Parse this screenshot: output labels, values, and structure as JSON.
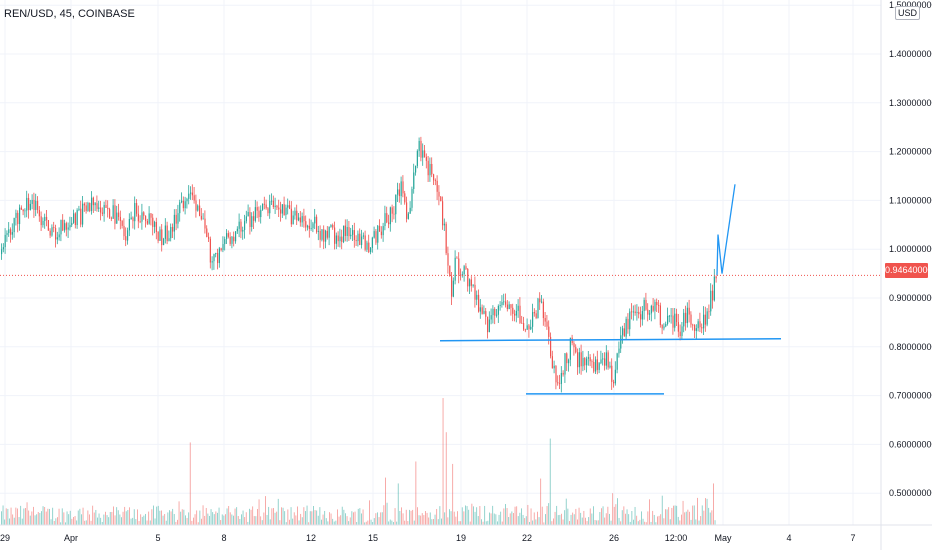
{
  "header": {
    "symbol": "REN/USD, 45, COINBASE",
    "currency": "USD"
  },
  "last_price": "0.94640000",
  "colors": {
    "up": "#26a69a",
    "down": "#ef5350",
    "drawing": "#2196f3",
    "last_price": "#f0534d",
    "grid": "#f0f3fa",
    "text": "#131722"
  },
  "chart_data": {
    "type": "candlestick",
    "symbol": "REN/USD",
    "interval": "45",
    "exchange": "COINBASE",
    "y_ticks": [
      "1.50000000",
      "1.40000000",
      "1.30000000",
      "1.20000000",
      "1.10000000",
      "1.00000000",
      "0.90000000",
      "0.80000000",
      "0.70000000",
      "0.60000000",
      "0.50000000"
    ],
    "ylim": [
      0.43,
      1.5
    ],
    "x_ticks": [
      "29",
      "Apr",
      "5",
      "8",
      "12",
      "15",
      "19",
      "22",
      "26",
      "12:00",
      "May",
      "4",
      "7"
    ],
    "last_price": 0.9464,
    "price_path": [
      [
        0,
        0.99
      ],
      [
        10,
        1.04
      ],
      [
        20,
        1.08
      ],
      [
        30,
        1.1
      ],
      [
        40,
        1.06
      ],
      [
        55,
        1.03
      ],
      [
        65,
        1.05
      ],
      [
        80,
        1.07
      ],
      [
        95,
        1.1
      ],
      [
        110,
        1.08
      ],
      [
        125,
        1.03
      ],
      [
        135,
        1.08
      ],
      [
        150,
        1.06
      ],
      [
        160,
        1.02
      ],
      [
        172,
        1.05
      ],
      [
        182,
        1.09
      ],
      [
        190,
        1.13
      ],
      [
        200,
        1.07
      ],
      [
        212,
        0.97
      ],
      [
        222,
        1.01
      ],
      [
        235,
        1.04
      ],
      [
        248,
        1.06
      ],
      [
        262,
        1.08
      ],
      [
        275,
        1.09
      ],
      [
        288,
        1.07
      ],
      [
        300,
        1.07
      ],
      [
        312,
        1.05
      ],
      [
        325,
        1.03
      ],
      [
        340,
        1.03
      ],
      [
        355,
        1.03
      ],
      [
        368,
        1.01
      ],
      [
        380,
        1.04
      ],
      [
        392,
        1.08
      ],
      [
        400,
        1.13
      ],
      [
        408,
        1.06
      ],
      [
        415,
        1.19
      ],
      [
        420,
        1.21
      ],
      [
        425,
        1.18
      ],
      [
        432,
        1.14
      ],
      [
        440,
        1.09
      ],
      [
        446,
        1.0
      ],
      [
        451,
        0.91
      ],
      [
        455,
        0.97
      ],
      [
        462,
        0.96
      ],
      [
        470,
        0.92
      ],
      [
        478,
        0.88
      ],
      [
        488,
        0.84
      ],
      [
        496,
        0.88
      ],
      [
        505,
        0.89
      ],
      [
        515,
        0.88
      ],
      [
        522,
        0.86
      ],
      [
        528,
        0.83
      ],
      [
        535,
        0.87
      ],
      [
        540,
        0.89
      ],
      [
        545,
        0.84
      ],
      [
        550,
        0.78
      ],
      [
        556,
        0.72
      ],
      [
        562,
        0.76
      ],
      [
        570,
        0.8
      ],
      [
        578,
        0.77
      ],
      [
        585,
        0.78
      ],
      [
        592,
        0.75
      ],
      [
        598,
        0.77
      ],
      [
        605,
        0.78
      ],
      [
        612,
        0.72
      ],
      [
        618,
        0.79
      ],
      [
        625,
        0.84
      ],
      [
        635,
        0.87
      ],
      [
        645,
        0.88
      ],
      [
        655,
        0.89
      ],
      [
        662,
        0.85
      ],
      [
        670,
        0.86
      ],
      [
        680,
        0.84
      ],
      [
        688,
        0.88
      ],
      [
        695,
        0.83
      ],
      [
        702,
        0.85
      ],
      [
        708,
        0.88
      ],
      [
        713,
        0.92
      ],
      [
        717,
        0.9464
      ]
    ],
    "volume_spikes": [
      [
        190,
        0.604
      ],
      [
        192,
        0.532
      ],
      [
        385,
        0.532
      ],
      [
        398,
        0.52
      ],
      [
        415,
        0.565
      ],
      [
        434,
        0.61
      ],
      [
        443,
        0.695
      ],
      [
        446,
        0.625
      ],
      [
        452,
        0.56
      ],
      [
        540,
        0.53
      ],
      [
        550,
        0.612
      ],
      [
        612,
        0.5
      ],
      [
        705,
        0.49
      ],
      [
        713,
        0.52
      ]
    ],
    "drawings": {
      "support_line_upper": {
        "x_start": 440,
        "x_end": 781,
        "price_start": 0.8125,
        "price_end": 0.8165
      },
      "support_line_lower": {
        "x_start": 526,
        "x_end": 664,
        "price": 0.7035
      },
      "projection": [
        [
          717,
          0.9464
        ],
        [
          718,
          1.03
        ],
        [
          722,
          0.95
        ],
        [
          735,
          1.133
        ]
      ]
    }
  }
}
